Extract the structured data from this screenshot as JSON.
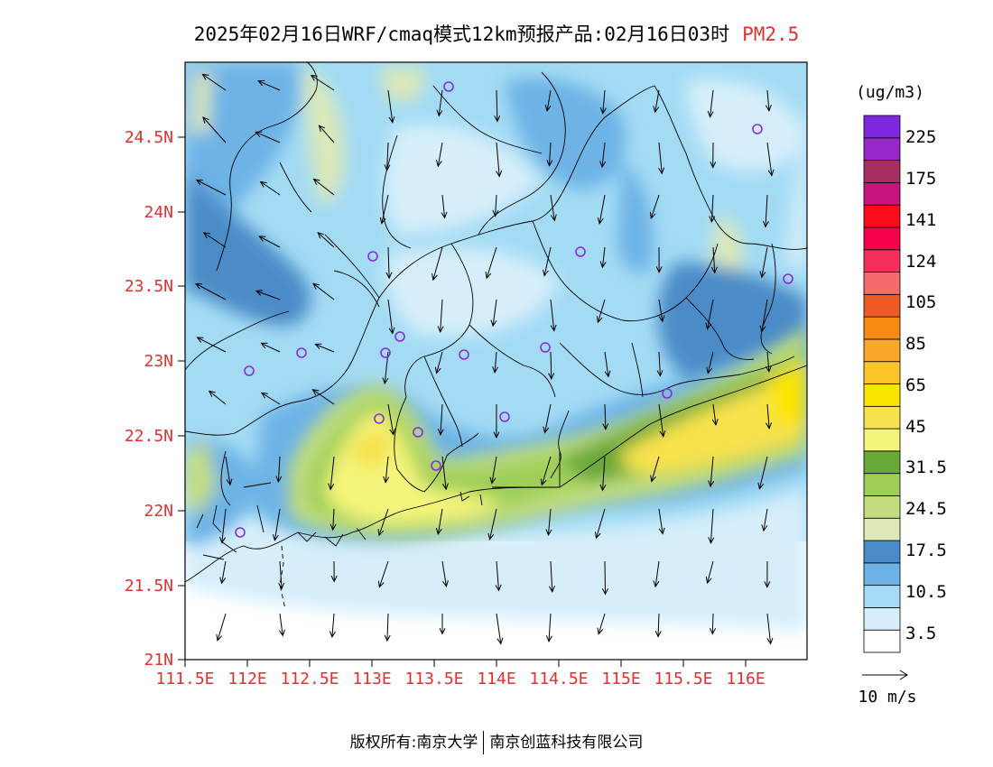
{
  "title": "2025年02月16日WRF/cmaq模式12km预报产品:02月16日03时",
  "variable": "PM2.5",
  "colors": {
    "axis_label": "#e03030",
    "title_variable": "#e03030"
  },
  "map": {
    "lat_ticks": [
      "24.5N",
      "24N",
      "23.5N",
      "23N",
      "22.5N",
      "22N",
      "21.5N",
      "21N"
    ],
    "lon_ticks": [
      "111.5E",
      "112E",
      "112.5E",
      "113E",
      "113.5E",
      "114E",
      "114.5E",
      "115E",
      "115.5E",
      "116E"
    ]
  },
  "legend": {
    "unit": "(ug/m3)",
    "labels": [
      "225",
      "175",
      "141",
      "124",
      "105",
      "85",
      "65",
      "45",
      "31.5",
      "24.5",
      "17.5",
      "10.5",
      "3.5"
    ],
    "colors": [
      "#ffffff",
      "#d6eefa",
      "#a3dbf4",
      "#6db3e6",
      "#4b8cc8",
      "#dce8b8",
      "#c2dd80",
      "#9fcf58",
      "#6aa83a",
      "#f4f47a",
      "#f6e24e",
      "#fbe500",
      "#fbc528",
      "#f9a62c",
      "#f78a10",
      "#ee5a25",
      "#f56a6a",
      "#f52f5b",
      "#f7004c",
      "#ff0a1c",
      "#c8157d",
      "#a62e61",
      "#9627c8",
      "#7e27e0"
    ]
  },
  "wind_scale": {
    "label": "10 m/s"
  },
  "footer": {
    "left": "版权所有:南京大学",
    "right": "南京创蓝科技有限公司"
  }
}
